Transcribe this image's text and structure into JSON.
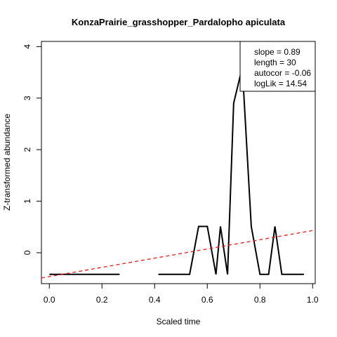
{
  "chart_data": {
    "type": "line",
    "title": "KonzaPrairie_grasshopper_Pardalopho apiculata",
    "xlabel": "Scaled time",
    "ylabel": "Z-transformed abundance",
    "xlim": [
      -0.03,
      1.01
    ],
    "ylim": [
      -0.6,
      4.1
    ],
    "x_ticks": [
      0.0,
      0.2,
      0.4,
      0.6,
      0.8,
      1.0
    ],
    "x_tick_labels": [
      "0.0",
      "0.2",
      "0.4",
      "0.6",
      "0.8",
      "1.0"
    ],
    "y_ticks": [
      0,
      1,
      2,
      3,
      4
    ],
    "y_tick_labels": [
      "0",
      "1",
      "2",
      "3",
      "4"
    ],
    "grid": false,
    "series": [
      {
        "color": "#000000",
        "style": "solid",
        "segments": [
          [
            [
              0.0,
              -0.42
            ],
            [
              0.267,
              -0.42
            ]
          ],
          [
            [
              0.414,
              -0.42
            ],
            [
              0.533,
              -0.42
            ],
            [
              0.567,
              0.51
            ],
            [
              0.6,
              0.51
            ],
            [
              0.633,
              -0.42
            ],
            [
              0.65,
              0.51
            ],
            [
              0.677,
              -0.42
            ],
            [
              0.7,
              2.9
            ],
            [
              0.733,
              3.6
            ],
            [
              0.767,
              0.51
            ],
            [
              0.8,
              -0.42
            ],
            [
              0.833,
              -0.42
            ],
            [
              0.857,
              0.51
            ],
            [
              0.883,
              -0.42
            ],
            [
              0.967,
              -0.42
            ]
          ]
        ]
      },
      {
        "color": "#e41a1c",
        "style": "dashed",
        "segments": [
          [
            [
              -0.03,
              -0.49
            ],
            [
              1.01,
              0.44
            ]
          ]
        ]
      }
    ],
    "legend": {
      "position": "top-right",
      "lines": [
        "slope = 0.89",
        "length = 30",
        "autocor = -0.06",
        "logLik = 14.54"
      ]
    }
  }
}
